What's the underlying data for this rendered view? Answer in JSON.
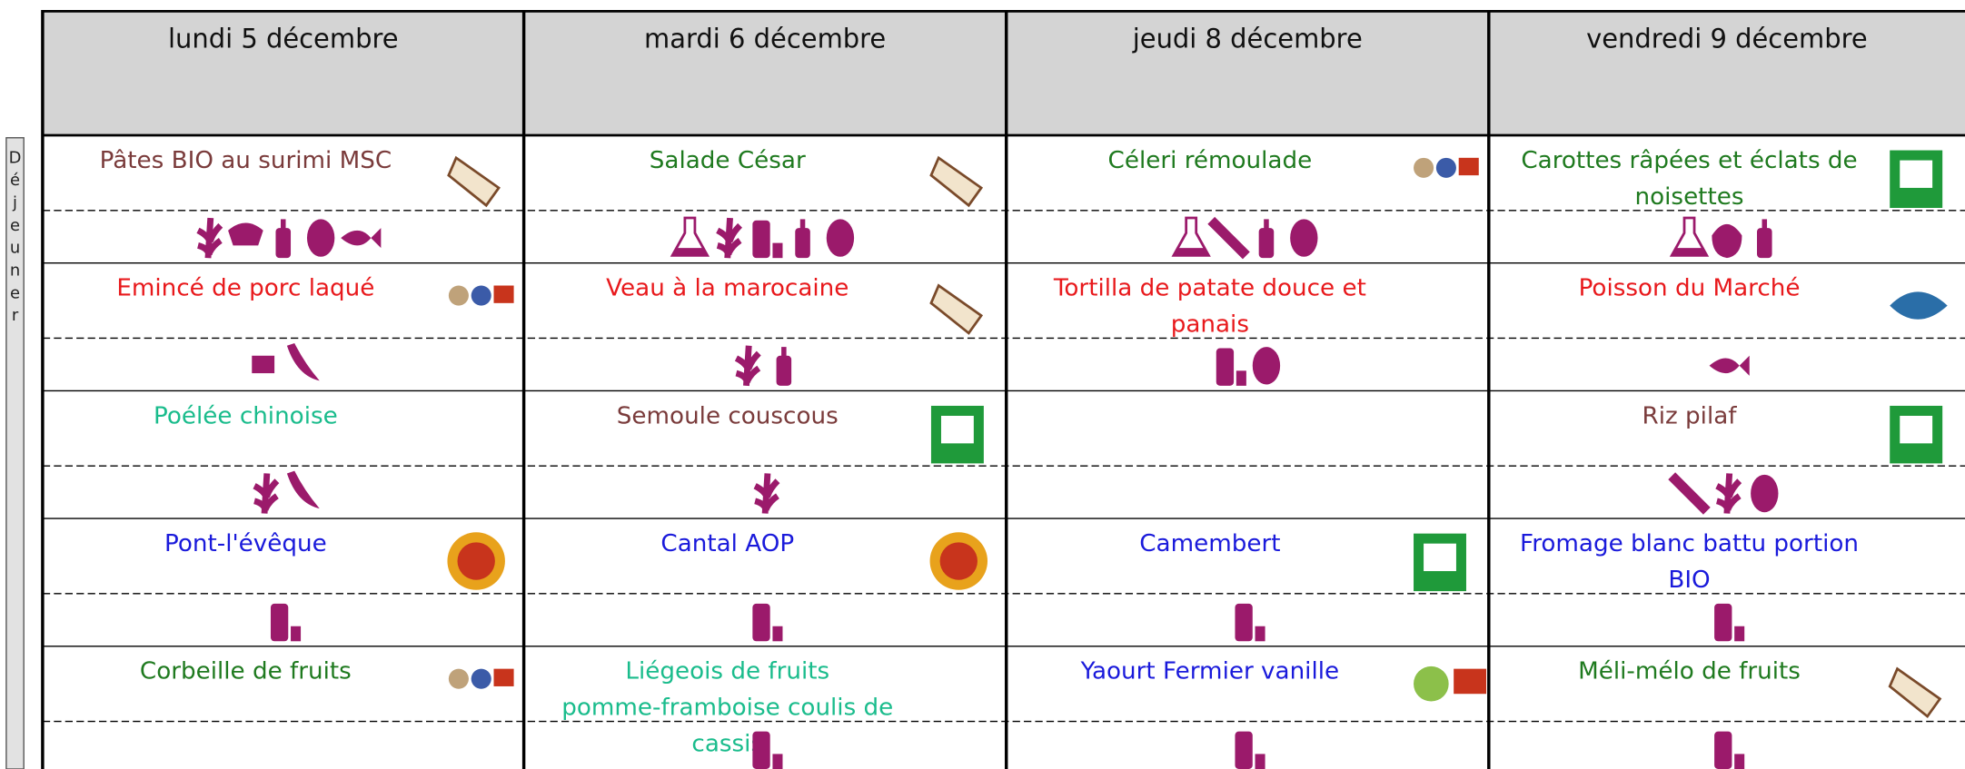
{
  "days": [
    "lundi 5 décembre",
    "mardi 6 décembre",
    "jeudi 8 décembre",
    "vendredi 9 décembre"
  ],
  "meal": "Déjeuner",
  "rows": [
    [
      {
        "dish": "Pâtes BIO au surimi MSC",
        "color": "#7a3b3b"
      },
      {
        "dish": "Salade César",
        "color": "#1f7a1f"
      },
      {
        "dish": "Céleri rémoulade",
        "color": "#1f7a1f"
      },
      {
        "dish": "Carottes râpées et éclats de noisettes",
        "color": "#1f7a1f"
      }
    ],
    [
      {
        "dish": "Emincé de porc laqué",
        "color": "#e8191c"
      },
      {
        "dish": "Veau à la marocaine",
        "color": "#e8191c"
      },
      {
        "dish": "Tortilla de patate douce et panais",
        "color": "#e8191c"
      },
      {
        "dish": "Poisson du Marché",
        "color": "#e8191c"
      }
    ],
    [
      {
        "dish": "Poélée chinoise",
        "color": "#1abc8c"
      },
      {
        "dish": "Semoule couscous",
        "color": "#7a3b3b"
      },
      null,
      {
        "dish": "Riz  pilaf",
        "color": "#7a3b3b"
      }
    ],
    [
      {
        "dish": "Pont-l'évêque",
        "color": "#1a1adb"
      },
      {
        "dish": "Cantal AOP",
        "color": "#1a1adb"
      },
      {
        "dish": "Camembert",
        "color": "#1a1adb"
      },
      {
        "dish": "Fromage blanc battu portion BIO",
        "color": "#1a1adb"
      }
    ],
    [
      {
        "dish": "Corbeille de fruits",
        "color": "#1f7a1f"
      },
      {
        "dish": "Liégeois de fruits pomme-framboise coulis de cassis",
        "color": "#1abc8c"
      },
      {
        "dish": "Yaourt Fermier vanille",
        "color": "#1a1adb"
      },
      {
        "dish": "Méli-mélo de fruits",
        "color": "#1f7a1f"
      }
    ]
  ]
}
